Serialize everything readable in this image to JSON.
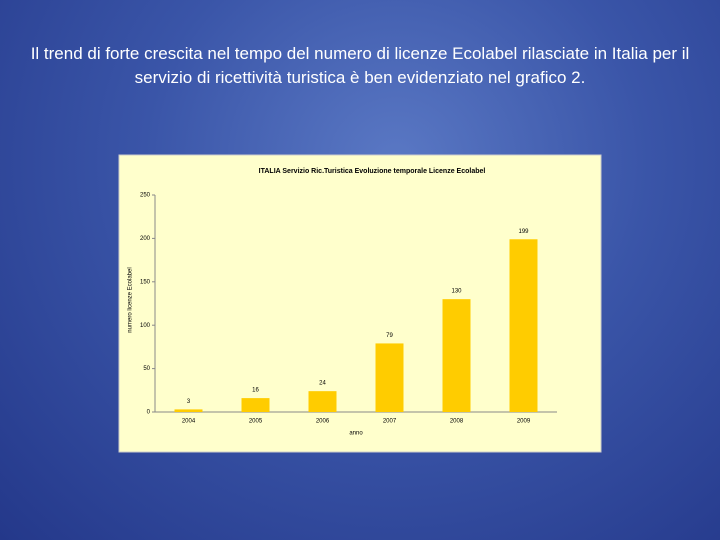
{
  "slide_text": "Il trend di forte crescita nel tempo del numero di licenze Ecolabel rilasciate in Italia per il servizio di ricettività turistica è ben evidenziato nel grafico 2.",
  "chart_data": {
    "type": "bar",
    "title": "ITALIA Servizio Ric.Turistica Evoluzione temporale Licenze Ecolabel",
    "y_label": "numero licenze Ecolabel",
    "x_label": "anno",
    "categories": [
      "2004",
      "2005",
      "2006",
      "2007",
      "2008",
      "2009"
    ],
    "values": [
      3,
      16,
      24,
      79,
      130,
      199
    ],
    "color": "#ffcc00",
    "ylim": [
      0,
      250
    ],
    "yticks": [
      0,
      50,
      100,
      150,
      200,
      250
    ]
  }
}
